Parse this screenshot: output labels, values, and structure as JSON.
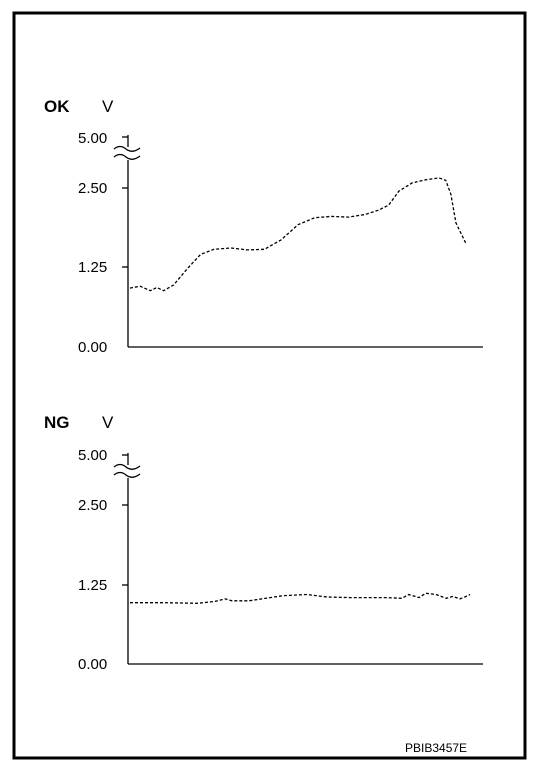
{
  "figure_code": "PBIB3457E",
  "chart_data": [
    {
      "type": "line",
      "title": "OK",
      "ylabel": "V",
      "yticks": [
        "5.00",
        "2.50",
        "1.25",
        "0.00"
      ],
      "axis_break": "between 2.50 and 5.00",
      "ylim": [
        0,
        5.0
      ],
      "line_style": "dashed",
      "grid": false,
      "series": [
        {
          "x": [
            0,
            0.03,
            0.06,
            0.08,
            0.1,
            0.13,
            0.17,
            0.21,
            0.25,
            0.3,
            0.35,
            0.4,
            0.45,
            0.5,
            0.55,
            0.6,
            0.65,
            0.7,
            0.74,
            0.77,
            0.8,
            0.84,
            0.88,
            0.92,
            0.94,
            0.955,
            0.97,
            1.0
          ],
          "values": [
            0.92,
            0.95,
            0.88,
            0.93,
            0.88,
            0.97,
            1.22,
            1.45,
            1.53,
            1.55,
            1.52,
            1.53,
            1.68,
            1.92,
            2.03,
            2.05,
            2.04,
            2.08,
            2.15,
            2.23,
            2.45,
            2.58,
            2.63,
            2.66,
            2.62,
            2.4,
            1.95,
            1.62
          ]
        }
      ]
    },
    {
      "type": "line",
      "title": "NG",
      "ylabel": "V",
      "yticks": [
        "5.00",
        "2.50",
        "1.25",
        "0.00"
      ],
      "axis_break": "between 2.50 and 5.00",
      "ylim": [
        0,
        5.0
      ],
      "line_style": "dashed",
      "grid": false,
      "series": [
        {
          "x": [
            0,
            0.1,
            0.2,
            0.25,
            0.28,
            0.3,
            0.35,
            0.45,
            0.52,
            0.58,
            0.65,
            0.75,
            0.8,
            0.82,
            0.85,
            0.87,
            0.9,
            0.93,
            0.95,
            0.97,
            0.985,
            1.0
          ],
          "values": [
            0.97,
            0.97,
            0.96,
            0.99,
            1.03,
            1.0,
            1.0,
            1.08,
            1.1,
            1.06,
            1.05,
            1.05,
            1.04,
            1.1,
            1.05,
            1.12,
            1.1,
            1.04,
            1.07,
            1.03,
            1.06,
            1.1
          ]
        }
      ]
    }
  ]
}
